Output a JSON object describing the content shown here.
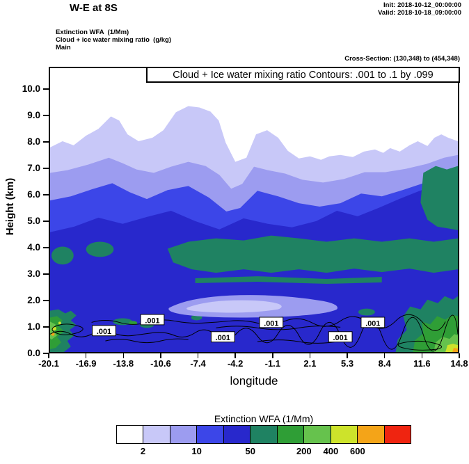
{
  "header": {
    "title": "W-E at 8S",
    "init": "Init: 2018-10-12_00:00:00",
    "valid": "Valid: 2018-10-18_09:00:00",
    "field_lines": [
      "Extinction WFA  (1/Mm)",
      "Cloud + ice water mixing ratio  (g/kg)",
      "Main"
    ],
    "cross_section": "Cross-Section: (130,348) to (454,348)"
  },
  "plot": {
    "title": "Cloud + Ice water mixing ratio Contours: .001 to .1 by .099",
    "ylabel": "Height (km)",
    "xlabel": "longitude",
    "yticks": [
      "0.0",
      "1.0",
      "2.0",
      "3.0",
      "4.0",
      "5.0",
      "6.0",
      "7.0",
      "8.0",
      "9.0",
      "10.0"
    ],
    "xticks": [
      "-20.1",
      "-16.9",
      "-13.8",
      "-10.6",
      "-7.4",
      "-4.2",
      "-1.1",
      "2.1",
      "5.3",
      "8.4",
      "11.6",
      "14.8"
    ],
    "contour_labels": [
      ".001",
      ".001",
      ".001",
      ".001",
      ".001",
      ".001"
    ]
  },
  "colorbar": {
    "title": "Extinction WFA  (1/Mm)",
    "colors": [
      "#ffffff",
      "#c8c8f8",
      "#9c9cf0",
      "#3c46e8",
      "#2828cc",
      "#1f8262",
      "#2f9e36",
      "#66c24d",
      "#cde32b",
      "#f4a418",
      "#ef2410"
    ],
    "tick_labels": [
      "2",
      "10",
      "50",
      "200",
      "400",
      "600"
    ],
    "tick_after_cell": [
      0,
      2,
      4,
      6,
      7,
      8
    ]
  },
  "chart_data": {
    "type": "heatmap",
    "subtype": "filled_contour_vertical_cross_section",
    "title": "Cloud + Ice water mixing ratio Contours: .001 to .1 by .099",
    "section_title": "W-E at 8S",
    "xlabel": "longitude",
    "ylabel": "Height (km)",
    "xlim": [
      -20.1,
      14.8
    ],
    "ylim": [
      0.0,
      10.8
    ],
    "x_ticks": [
      -20.1,
      -16.9,
      -13.8,
      -10.6,
      -7.4,
      -4.2,
      -1.1,
      2.1,
      5.3,
      8.4,
      11.6,
      14.8
    ],
    "y_ticks": [
      0.0,
      1.0,
      2.0,
      3.0,
      4.0,
      5.0,
      6.0,
      7.0,
      8.0,
      9.0,
      10.0
    ],
    "grid": false,
    "legend_position": "bottom",
    "shaded_field": {
      "name": "Extinction WFA (1/Mm)",
      "labeled_level_edges": [
        2,
        10,
        50,
        200,
        400,
        600
      ],
      "n_color_cells": 11,
      "palette": [
        "#ffffff",
        "#c8c8f8",
        "#9c9cf0",
        "#3c46e8",
        "#2828cc",
        "#1f8262",
        "#2f9e36",
        "#66c24d",
        "#cde32b",
        "#f4a418",
        "#ef2410"
      ]
    },
    "line_field": {
      "name": "Cloud + ice water mixing ratio (g/kg)",
      "contour_start": 0.001,
      "contour_end": 0.1,
      "contour_interval": 0.099,
      "label_shown": ".001",
      "location": "thin squiggly layer near 0.7-1.2 km height across most of the section"
    },
    "features": [
      "Values 2-50 1/Mm fill most of the section below a wavy cloud top that varies between about 6 and 9.7 km",
      "Highest cloud-top bump (~9.7 km) near longitude -6; white (<2) air above",
      "A 50-100 1/Mm teal band lies near 3-4.5 km across the central and eastern part of the section",
      "A cleaner slot (lavender/periwinkle, <10) near 1.5-2 km between roughly longitudes -13 and -4",
      "Maxima exceeding 200-600 1/Mm hug the far western edge near 1 km and the southeastern corner below 2 km"
    ]
  }
}
